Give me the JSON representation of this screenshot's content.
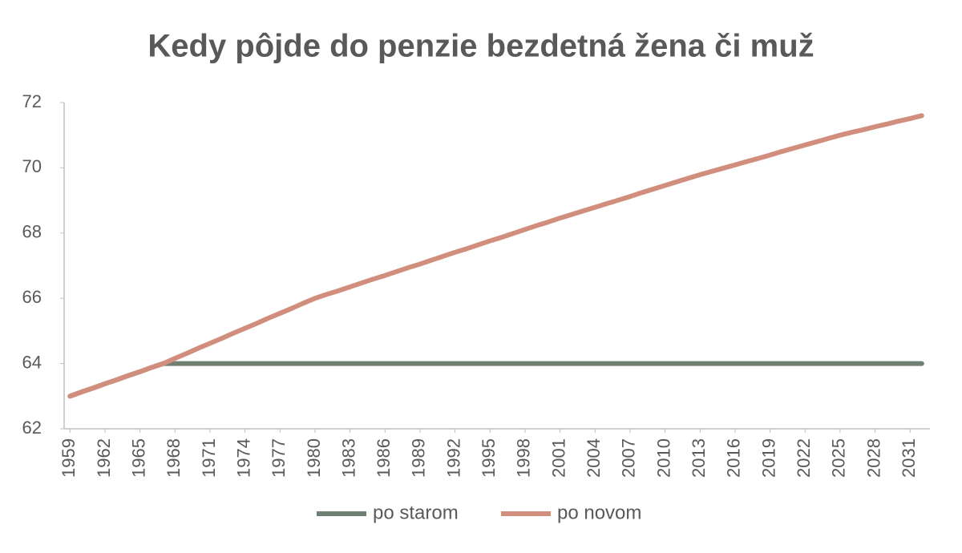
{
  "chart_data": {
    "type": "line",
    "title": "Kedy pôjde do penzie bezdetná žena či muž",
    "x": [
      1959,
      1960,
      1961,
      1962,
      1963,
      1964,
      1965,
      1966,
      1967,
      1968,
      1969,
      1970,
      1971,
      1972,
      1973,
      1974,
      1975,
      1976,
      1977,
      1978,
      1979,
      1980,
      1981,
      1982,
      1983,
      1984,
      1985,
      1986,
      1987,
      1988,
      1989,
      1990,
      1991,
      1992,
      1993,
      1994,
      1995,
      1996,
      1997,
      1998,
      1999,
      2000,
      2001,
      2002,
      2003,
      2004,
      2005,
      2006,
      2007,
      2008,
      2009,
      2010,
      2011,
      2012,
      2013,
      2014,
      2015,
      2016,
      2017,
      2018,
      2019,
      2020,
      2021,
      2022,
      2023,
      2024,
      2025,
      2026,
      2027,
      2028,
      2029,
      2030,
      2031,
      2032
    ],
    "series": [
      {
        "name": "po starom",
        "color": "#6f8073",
        "values": [
          63.0,
          63.13,
          63.25,
          63.38,
          63.5,
          63.63,
          63.75,
          63.88,
          64.0,
          64,
          64,
          64,
          64,
          64,
          64,
          64,
          64,
          64,
          64,
          64,
          64,
          64,
          64,
          64,
          64,
          64,
          64,
          64,
          64,
          64,
          64,
          64,
          64,
          64,
          64,
          64,
          64,
          64,
          64,
          64,
          64,
          64,
          64,
          64,
          64,
          64,
          64,
          64,
          64,
          64,
          64,
          64,
          64,
          64,
          64,
          64,
          64,
          64,
          64,
          64,
          64,
          64,
          64,
          64,
          64,
          64,
          64,
          64,
          64,
          64,
          64,
          64,
          64,
          64
        ]
      },
      {
        "name": "po novom",
        "color": "#d18e7c",
        "values": [
          63.0,
          63.13,
          63.25,
          63.38,
          63.5,
          63.63,
          63.75,
          63.88,
          64.0,
          64.16,
          64.31,
          64.47,
          64.62,
          64.77,
          64.93,
          65.08,
          65.23,
          65.39,
          65.54,
          65.69,
          65.85,
          66.0,
          66.12,
          66.23,
          66.35,
          66.47,
          66.59,
          66.7,
          66.82,
          66.94,
          67.05,
          67.17,
          67.29,
          67.41,
          67.52,
          67.64,
          67.76,
          67.87,
          67.99,
          68.11,
          68.23,
          68.34,
          68.46,
          68.57,
          68.68,
          68.79,
          68.9,
          69.01,
          69.12,
          69.24,
          69.35,
          69.46,
          69.57,
          69.68,
          69.79,
          69.89,
          69.99,
          70.09,
          70.19,
          70.29,
          70.39,
          70.5,
          70.6,
          70.7,
          70.8,
          70.9,
          71.0,
          71.09,
          71.17,
          71.26,
          71.34,
          71.43,
          71.51,
          71.6
        ]
      }
    ],
    "xlim": [
      1958.5,
      2032.7
    ],
    "xticks": [
      1959,
      1962,
      1965,
      1968,
      1971,
      1974,
      1977,
      1980,
      1983,
      1986,
      1989,
      1992,
      1995,
      1998,
      2001,
      2004,
      2007,
      2010,
      2013,
      2016,
      2019,
      2022,
      2025,
      2028,
      2031
    ],
    "ylim": [
      62,
      72
    ],
    "yticks": [
      62,
      64,
      66,
      68,
      70,
      72
    ],
    "grid": false,
    "legend": "bottom"
  }
}
